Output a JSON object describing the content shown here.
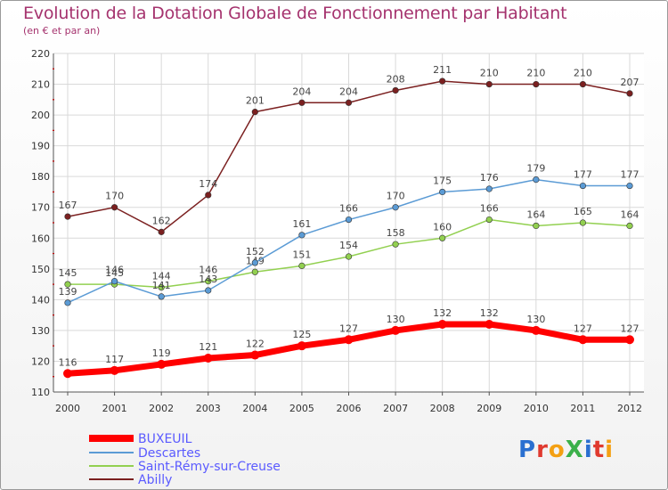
{
  "title": "Evolution de la Dotation Globale de Fonctionnement par Habitant",
  "subtitle": "(en € et par an)",
  "logo": {
    "text": "ProXiti",
    "colors": [
      "#2a6fd0",
      "#e03a2f",
      "#f4a013",
      "#3bb04a",
      "#2a6fd0",
      "#e03a2f",
      "#f4a013"
    ]
  },
  "chart_data": {
    "type": "line",
    "x": [
      "2000",
      "2001",
      "2002",
      "2003",
      "2004",
      "2005",
      "2006",
      "2007",
      "2008",
      "2009",
      "2010",
      "2011",
      "2012"
    ],
    "ylim": [
      110,
      220
    ],
    "yticks": [
      110,
      120,
      130,
      140,
      150,
      160,
      170,
      180,
      190,
      200,
      210,
      220
    ],
    "grid": true,
    "series": [
      {
        "name": "BUXEUIL",
        "color": "#ff0000",
        "values": [
          116,
          117,
          119,
          121,
          122,
          125,
          127,
          130,
          132,
          132,
          130,
          127,
          127
        ]
      },
      {
        "name": "Descartes",
        "color": "#5b9bd5",
        "values": [
          139,
          146,
          141,
          143,
          152,
          161,
          166,
          170,
          175,
          176,
          179,
          177,
          177
        ]
      },
      {
        "name": "Saint-Rémy-sur-Creuse",
        "color": "#92d050",
        "values": [
          145,
          145,
          144,
          146,
          149,
          151,
          154,
          158,
          160,
          166,
          164,
          165,
          164
        ]
      },
      {
        "name": "Abilly",
        "color": "#7b2020",
        "values": [
          167,
          170,
          162,
          174,
          201,
          204,
          204,
          208,
          211,
          210,
          210,
          210,
          207
        ]
      }
    ]
  }
}
